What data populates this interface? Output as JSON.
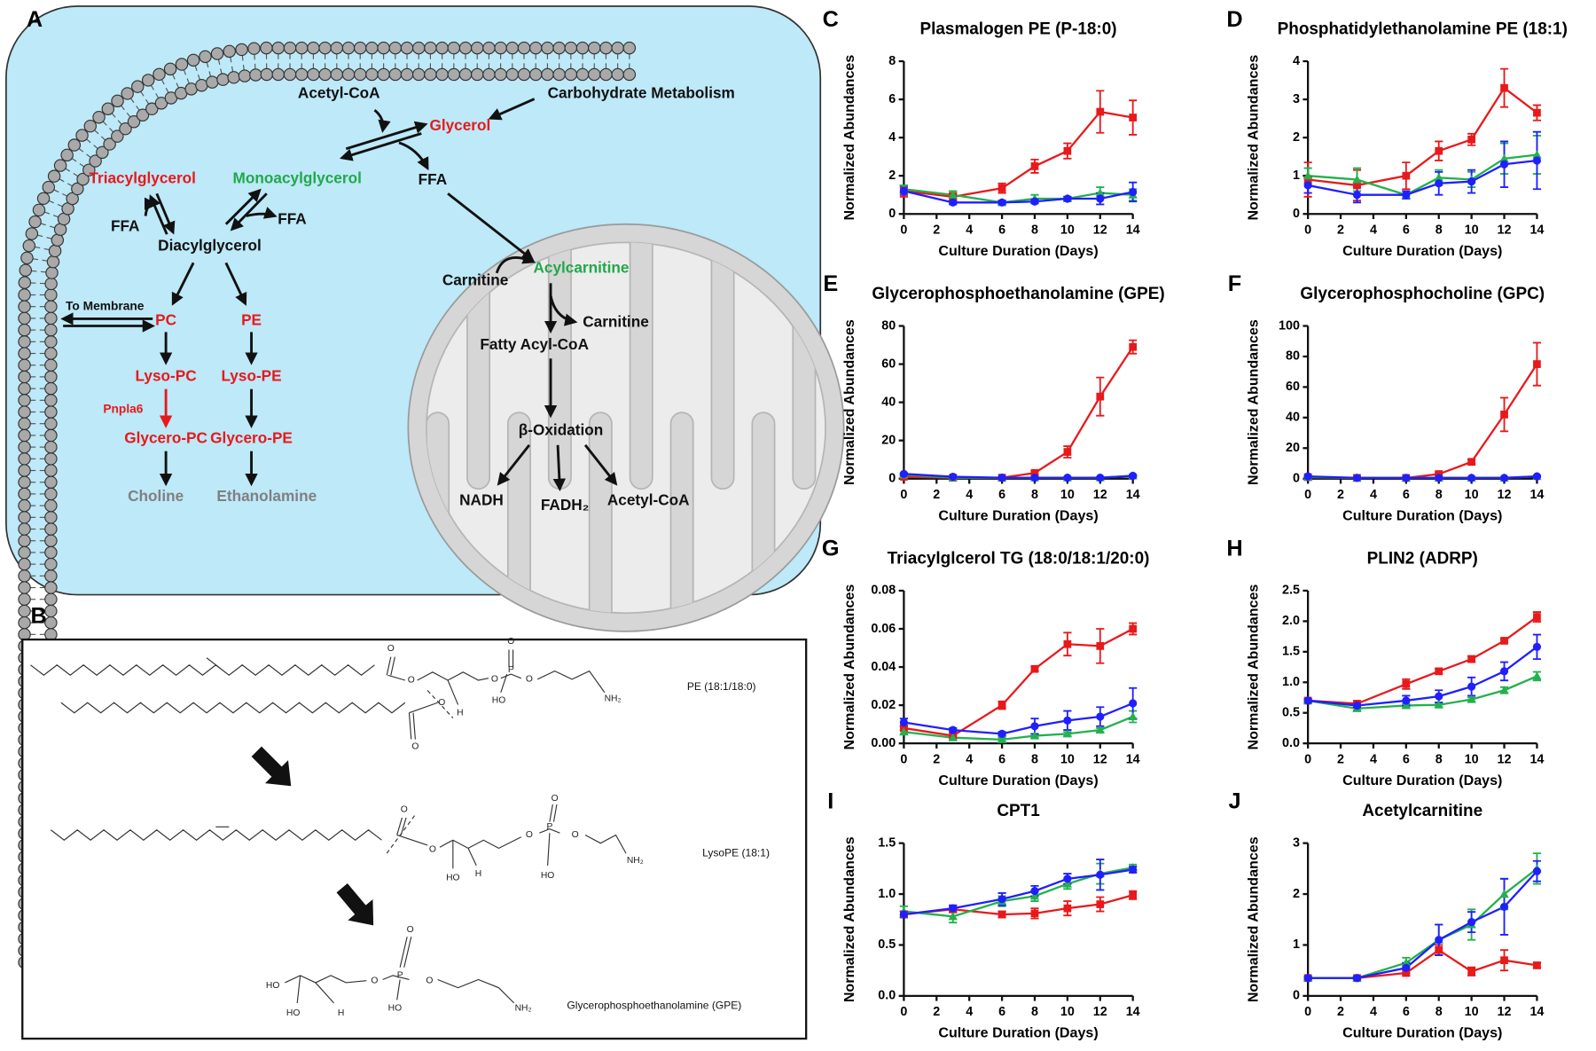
{
  "panel_a": {
    "label": "A",
    "nodes": [
      {
        "text": "Acetyl-CoA",
        "color": "#111111"
      },
      {
        "text": "Carbohydrate Metabolism",
        "color": "#111111"
      },
      {
        "text": "Glycerol",
        "color": "#e8191b"
      },
      {
        "text": "Triacylglycerol",
        "color": "#e8191b"
      },
      {
        "text": "Monoacylglycerol",
        "color": "#22a84a"
      },
      {
        "text": "FFA",
        "color": "#111111"
      },
      {
        "text": "FFA",
        "color": "#111111"
      },
      {
        "text": "FFA",
        "color": "#111111"
      },
      {
        "text": "Diacylglycerol",
        "color": "#111111"
      },
      {
        "text": "To Membrane",
        "color": "#111111"
      },
      {
        "text": "PC",
        "color": "#e8191b"
      },
      {
        "text": "PE",
        "color": "#e8191b"
      },
      {
        "text": "Lyso-PC",
        "color": "#e8191b"
      },
      {
        "text": "Lyso-PE",
        "color": "#e8191b"
      },
      {
        "text": "Pnpla6",
        "color": "#e8191b"
      },
      {
        "text": "Glycero-PC",
        "color": "#e8191b"
      },
      {
        "text": "Glycero-PE",
        "color": "#e8191b"
      },
      {
        "text": "Choline",
        "color": "#808080"
      },
      {
        "text": "Ethanolamine",
        "color": "#808080"
      },
      {
        "text": "Carnitine",
        "color": "#111111"
      },
      {
        "text": "Acylcarnitine",
        "color": "#22a84a"
      },
      {
        "text": "Carnitine",
        "color": "#111111"
      },
      {
        "text": "Fatty Acyl-CoA",
        "color": "#111111"
      },
      {
        "text": "β-Oxidation",
        "color": "#111111"
      },
      {
        "text": "NADH",
        "color": "#111111"
      },
      {
        "text": "FADH₂",
        "color": "#111111"
      },
      {
        "text": "Acetyl-CoA",
        "color": "#111111"
      }
    ]
  },
  "panel_b": {
    "label": "B",
    "structures": [
      {
        "name": "PE (18:1/18:0)",
        "atoms": [
          "O",
          "O",
          "O",
          "O",
          "H",
          "O",
          "P",
          "O",
          "HO",
          "O",
          "NH₂"
        ]
      },
      {
        "name": "LysoPE (18:1)",
        "atoms": [
          "O",
          "O",
          "HO",
          "H",
          "O",
          "P",
          "O",
          "HO",
          "O",
          "NH₂"
        ]
      },
      {
        "name": "Glycerophosphoethanolamine (GPE)",
        "atoms": [
          "HO",
          "HO",
          "H",
          "O",
          "P",
          "O",
          "HO",
          "O",
          "NH₂"
        ]
      }
    ]
  },
  "chart_data": [
    {
      "type": "line",
      "panel": "C",
      "title": "Plasmalogen PE (P-18:0)",
      "xlabel": "Culture Duration (Days)",
      "ylabel": "Normalized Abundances",
      "x": [
        0,
        3,
        6,
        8,
        10,
        12,
        14
      ],
      "xlim": [
        0,
        14
      ],
      "xticks": [
        0,
        2,
        4,
        6,
        8,
        10,
        12,
        14
      ],
      "ylim": [
        0,
        8
      ],
      "yticks": [
        0,
        2,
        4,
        6,
        8
      ],
      "series": [
        {
          "color": "#e8191b",
          "marker": "square",
          "values": [
            1.2,
            0.9,
            1.35,
            2.5,
            3.3,
            5.35,
            5.05
          ],
          "errors": [
            0.3,
            0.2,
            0.25,
            0.35,
            0.4,
            1.1,
            0.9
          ]
        },
        {
          "color": "#22b14c",
          "marker": "triangle",
          "values": [
            1.3,
            1.0,
            0.6,
            0.8,
            0.8,
            1.1,
            1.0
          ],
          "errors": [
            0.2,
            0.2,
            0.1,
            0.2,
            0.1,
            0.3,
            0.3
          ]
        },
        {
          "color": "#1f1fff",
          "marker": "circle",
          "values": [
            1.2,
            0.6,
            0.6,
            0.65,
            0.8,
            0.8,
            1.15
          ],
          "errors": [
            0.2,
            0.1,
            0.1,
            0.1,
            0.1,
            0.3,
            0.5
          ]
        }
      ]
    },
    {
      "type": "line",
      "panel": "D",
      "title": "Phosphatidylethanolamine PE (18:1)",
      "xlabel": "Culture Duration (Days)",
      "ylabel": "Normalized Abundances",
      "x": [
        0,
        3,
        6,
        8,
        10,
        12,
        14
      ],
      "xlim": [
        0,
        14
      ],
      "xticks": [
        0,
        2,
        4,
        6,
        8,
        10,
        12,
        14
      ],
      "ylim": [
        0,
        4
      ],
      "yticks": [
        0,
        1,
        2,
        3,
        4
      ],
      "series": [
        {
          "color": "#e8191b",
          "marker": "square",
          "values": [
            0.9,
            0.75,
            1.0,
            1.65,
            1.95,
            3.3,
            2.65
          ],
          "errors": [
            0.45,
            0.4,
            0.35,
            0.25,
            0.15,
            0.5,
            0.2
          ]
        },
        {
          "color": "#22b14c",
          "marker": "triangle",
          "values": [
            1.0,
            0.9,
            0.5,
            0.95,
            0.9,
            1.45,
            1.55
          ],
          "errors": [
            0.2,
            0.3,
            0.1,
            0.2,
            0.2,
            0.4,
            0.5
          ]
        },
        {
          "color": "#1f1fff",
          "marker": "circle",
          "values": [
            0.75,
            0.5,
            0.5,
            0.8,
            0.85,
            1.3,
            1.4
          ],
          "errors": [
            0.2,
            0.2,
            0.1,
            0.3,
            0.3,
            0.6,
            0.75
          ]
        }
      ]
    },
    {
      "type": "line",
      "panel": "E",
      "title": "Glycerophosphoethanolamine (GPE)",
      "xlabel": "Culture Duration (Days)",
      "ylabel": "Normalized Abundances",
      "x": [
        0,
        3,
        6,
        8,
        10,
        12,
        14
      ],
      "xlim": [
        0,
        14
      ],
      "xticks": [
        0,
        2,
        4,
        6,
        8,
        10,
        12,
        14
      ],
      "ylim": [
        0,
        80
      ],
      "yticks": [
        0,
        20,
        40,
        60,
        80
      ],
      "series": [
        {
          "color": "#e8191b",
          "marker": "square",
          "values": [
            1,
            0.5,
            0.5,
            3,
            14,
            43,
            69
          ],
          "errors": [
            0.5,
            0.3,
            0.3,
            1,
            3,
            10,
            3.5
          ]
        },
        {
          "color": "#22b14c",
          "marker": "triangle",
          "values": [
            2,
            0.5,
            0.5,
            0.5,
            0.5,
            0.5,
            1.5
          ],
          "errors": [
            0.5,
            0.3,
            0.3,
            0.3,
            0.3,
            0.3,
            0.5
          ]
        },
        {
          "color": "#1f1fff",
          "marker": "circle",
          "values": [
            2.5,
            1,
            0.5,
            0.5,
            0.5,
            0.5,
            1.5
          ],
          "errors": [
            0.5,
            0.3,
            0.3,
            0.3,
            0.3,
            0.3,
            0.5
          ]
        }
      ]
    },
    {
      "type": "line",
      "panel": "F",
      "title": "Glycerophosphocholine (GPC)",
      "xlabel": "Culture Duration (Days)",
      "ylabel": "Normalized Abundances",
      "x": [
        0,
        3,
        6,
        8,
        10,
        12,
        14
      ],
      "xlim": [
        0,
        14
      ],
      "xticks": [
        0,
        2,
        4,
        6,
        8,
        10,
        12,
        14
      ],
      "ylim": [
        0,
        100
      ],
      "yticks": [
        0,
        20,
        40,
        60,
        80,
        100
      ],
      "series": [
        {
          "color": "#e8191b",
          "marker": "square",
          "values": [
            1,
            0.5,
            0.5,
            3,
            11,
            42,
            75
          ],
          "errors": [
            0.5,
            0.3,
            0.3,
            1,
            1.5,
            11,
            14
          ]
        },
        {
          "color": "#22b14c",
          "marker": "triangle",
          "values": [
            1,
            0.5,
            0.5,
            0.5,
            0.5,
            0.5,
            1.5
          ],
          "errors": [
            0.5,
            0.3,
            0.3,
            0.3,
            0.3,
            0.3,
            0.5
          ]
        },
        {
          "color": "#1f1fff",
          "marker": "circle",
          "values": [
            1.5,
            0.5,
            0.5,
            0.5,
            0.5,
            0.5,
            1.5
          ],
          "errors": [
            0.5,
            0.3,
            0.3,
            0.3,
            0.3,
            0.3,
            0.5
          ]
        }
      ]
    },
    {
      "type": "line",
      "panel": "G",
      "title": "Triacylglcerol TG (18:0/18:1/20:0)",
      "xlabel": "Culture Duration (Days)",
      "ylabel": "Normalized Abundances",
      "x": [
        0,
        3,
        6,
        8,
        10,
        12,
        14
      ],
      "xlim": [
        0,
        14
      ],
      "xticks": [
        0,
        2,
        4,
        6,
        8,
        10,
        12,
        14
      ],
      "ylim": [
        0,
        0.08
      ],
      "yticks": [
        {
          "value": 0,
          "label": "0.00"
        },
        0.02,
        0.04,
        0.06,
        0.08
      ],
      "series": [
        {
          "color": "#e8191b",
          "marker": "square",
          "values": [
            0.008,
            0.004,
            0.02,
            0.039,
            0.052,
            0.051,
            0.06
          ],
          "errors": [
            0.001,
            0.001,
            0.002,
            0.001,
            0.006,
            0.009,
            0.003
          ]
        },
        {
          "color": "#22b14c",
          "marker": "triangle",
          "values": [
            0.006,
            0.003,
            0.002,
            0.004,
            0.005,
            0.007,
            0.014
          ],
          "errors": [
            0.001,
            0.001,
            0.001,
            0.001,
            0.001,
            0.001,
            0.003
          ]
        },
        {
          "color": "#1f1fff",
          "marker": "circle",
          "values": [
            0.011,
            0.007,
            0.005,
            0.009,
            0.012,
            0.014,
            0.021
          ],
          "errors": [
            0.002,
            0.001,
            0.001,
            0.004,
            0.005,
            0.005,
            0.008
          ]
        }
      ]
    },
    {
      "type": "line",
      "panel": "H",
      "title": "PLIN2 (ADRP)",
      "xlabel": "Culture Duration (Days)",
      "ylabel": "Normalized Abundances",
      "x": [
        0,
        3,
        6,
        8,
        10,
        12,
        14
      ],
      "xlim": [
        0,
        14
      ],
      "xticks": [
        0,
        2,
        4,
        6,
        8,
        10,
        12,
        14
      ],
      "ylim": [
        0,
        2.5
      ],
      "yticks": [
        {
          "value": 0,
          "label": "0.0"
        },
        0.5,
        {
          "value": 1,
          "label": "1.0"
        },
        1.5,
        {
          "value": 2,
          "label": "2.0"
        },
        2.5
      ],
      "series": [
        {
          "color": "#e8191b",
          "marker": "square",
          "values": [
            0.7,
            0.65,
            0.97,
            1.18,
            1.38,
            1.68,
            2.07
          ],
          "errors": [
            0.03,
            0.03,
            0.08,
            0.04,
            0.05,
            0.03,
            0.08
          ]
        },
        {
          "color": "#22b14c",
          "marker": "triangle",
          "values": [
            0.7,
            0.57,
            0.62,
            0.63,
            0.72,
            0.87,
            1.1
          ],
          "errors": [
            0.03,
            0.03,
            0.03,
            0.03,
            0.03,
            0.05,
            0.07
          ]
        },
        {
          "color": "#1f1fff",
          "marker": "circle",
          "values": [
            0.7,
            0.62,
            0.7,
            0.77,
            0.93,
            1.18,
            1.58
          ],
          "errors": [
            0.03,
            0.03,
            0.08,
            0.1,
            0.15,
            0.15,
            0.2
          ]
        }
      ]
    },
    {
      "type": "line",
      "panel": "I",
      "title": "CPT1",
      "xlabel": "Culture Duration (Days)",
      "ylabel": "Normalized Abundances",
      "x": [
        0,
        3,
        6,
        8,
        10,
        12,
        14
      ],
      "xlim": [
        0,
        14
      ],
      "xticks": [
        0,
        2,
        4,
        6,
        8,
        10,
        12,
        14
      ],
      "ylim": [
        0,
        1.5
      ],
      "yticks": [
        {
          "value": 0,
          "label": "0.0"
        },
        0.5,
        {
          "value": 1,
          "label": "1.0"
        },
        1.5
      ],
      "series": [
        {
          "color": "#e8191b",
          "marker": "square",
          "values": [
            0.8,
            0.85,
            0.8,
            0.81,
            0.86,
            0.9,
            0.99
          ],
          "errors": [
            0.03,
            0.03,
            0.03,
            0.05,
            0.07,
            0.07,
            0.04
          ]
        },
        {
          "color": "#22b14c",
          "marker": "triangle",
          "values": [
            0.83,
            0.78,
            0.93,
            0.98,
            1.1,
            1.2,
            1.26
          ],
          "errors": [
            0.05,
            0.06,
            0.05,
            0.05,
            0.05,
            0.1,
            0.03
          ]
        },
        {
          "color": "#1f1fff",
          "marker": "circle",
          "values": [
            0.8,
            0.86,
            0.95,
            1.03,
            1.15,
            1.19,
            1.24
          ],
          "errors": [
            0.03,
            0.03,
            0.06,
            0.05,
            0.05,
            0.15,
            0.03
          ]
        }
      ]
    },
    {
      "type": "line",
      "panel": "J",
      "title": "Acetylcarnitine",
      "xlabel": "Culture Duration (Days)",
      "ylabel": "Normalized Abundances",
      "x": [
        0,
        3,
        6,
        8,
        10,
        12,
        14
      ],
      "xlim": [
        0,
        14
      ],
      "xticks": [
        0,
        2,
        4,
        6,
        8,
        10,
        12,
        14
      ],
      "ylim": [
        0,
        3
      ],
      "yticks": [
        0,
        1,
        2,
        3
      ],
      "series": [
        {
          "color": "#e8191b",
          "marker": "square",
          "values": [
            0.35,
            0.35,
            0.45,
            0.9,
            0.48,
            0.7,
            0.6
          ],
          "errors": [
            0.03,
            0.03,
            0.05,
            0.1,
            0.08,
            0.2,
            0.05
          ]
        },
        {
          "color": "#22b14c",
          "marker": "triangle",
          "values": [
            0.35,
            0.35,
            0.65,
            1.1,
            1.4,
            2.0,
            2.5
          ],
          "errors": [
            0.03,
            0.03,
            0.1,
            0.3,
            0.3,
            0.3,
            0.3
          ]
        },
        {
          "color": "#1f1fff",
          "marker": "circle",
          "values": [
            0.35,
            0.35,
            0.55,
            1.1,
            1.45,
            1.75,
            2.45
          ],
          "errors": [
            0.03,
            0.03,
            0.1,
            0.3,
            0.2,
            0.55,
            0.2
          ]
        }
      ]
    }
  ]
}
